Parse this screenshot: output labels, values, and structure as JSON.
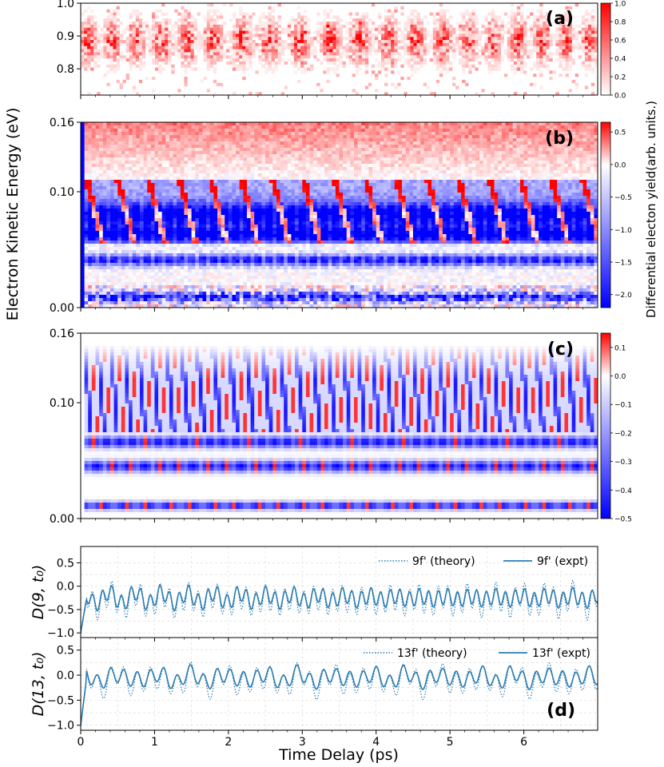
{
  "figure": {
    "shared_ylabel": "Electron Kinetic Energy (eV)",
    "colorbar_label": "Differential electon yield(arb. units.)",
    "xlabel": "Time Delay (ps)"
  },
  "chart_data": [
    {
      "panel": "a",
      "type": "heatmap",
      "label": "(a)",
      "ylim": [
        0.72,
        1.0
      ],
      "yticks": [
        "0.8",
        "0.9",
        "1.0"
      ],
      "xlim": [
        0,
        7
      ],
      "colormap": "white-red",
      "colorbar_ticks": [
        "0.0",
        "0.2",
        "0.4",
        "0.6",
        "0.8",
        "1.0"
      ],
      "colorbar_range": [
        0.0,
        1.0
      ]
    },
    {
      "panel": "b",
      "type": "heatmap",
      "label": "(b)",
      "ylim": [
        0.0,
        0.16
      ],
      "yticks": [
        "0.00",
        "0.10",
        "0.16"
      ],
      "xlim": [
        0,
        7
      ],
      "colormap": "blue-white-red",
      "colorbar_ticks": [
        "0.5",
        "0.0",
        "−0.5",
        "−1.0",
        "−1.5",
        "−2.0"
      ],
      "colorbar_range": [
        -2.2,
        0.65
      ]
    },
    {
      "panel": "c",
      "type": "heatmap",
      "label": "(c)",
      "ylim": [
        0.0,
        0.16
      ],
      "yticks": [
        "0.00",
        "0.10",
        "0.16"
      ],
      "xlim": [
        0,
        7
      ],
      "colormap": "blue-white-red",
      "colorbar_ticks": [
        "0.1",
        "0.0",
        "−0.1",
        "−0.2",
        "−0.3",
        "−0.4",
        "−0.5"
      ],
      "colorbar_range": [
        -0.5,
        0.15
      ]
    },
    {
      "panel": "d-top",
      "type": "line",
      "ylabel": "D(9, t₀)",
      "ylim": [
        -1.1,
        0.85
      ],
      "yticks": [
        "0.5",
        "0.0",
        "−0.5",
        "−1.0"
      ],
      "xlim": [
        0,
        7
      ],
      "series": [
        {
          "name": "9f' (theory)",
          "style": "dotted",
          "start": -1.0,
          "mean": -0.3,
          "amplitude": 0.35,
          "period_ps": 0.13
        },
        {
          "name": "9f' (expt)",
          "style": "solid",
          "start": -1.0,
          "mean": -0.25,
          "amplitude": 0.22,
          "period_ps": 0.13
        }
      ]
    },
    {
      "panel": "d-bottom",
      "type": "line",
      "label": "(d)",
      "ylabel": "D(13, t₀)",
      "ylim": [
        -1.1,
        0.75
      ],
      "yticks": [
        "0.5",
        "0.0",
        "−0.5",
        "−1.0"
      ],
      "xlim": [
        0,
        7
      ],
      "xticks": [
        "0",
        "1",
        "2",
        "3",
        "4",
        "5",
        "6"
      ],
      "series": [
        {
          "name": "13f' (theory)",
          "style": "dotted",
          "start": -1.0,
          "mean": -0.1,
          "amplitude": 0.3,
          "period_ps": 0.18
        },
        {
          "name": "13f' (expt)",
          "style": "solid",
          "start": -1.0,
          "mean": -0.05,
          "amplitude": 0.2,
          "period_ps": 0.18
        }
      ]
    }
  ]
}
